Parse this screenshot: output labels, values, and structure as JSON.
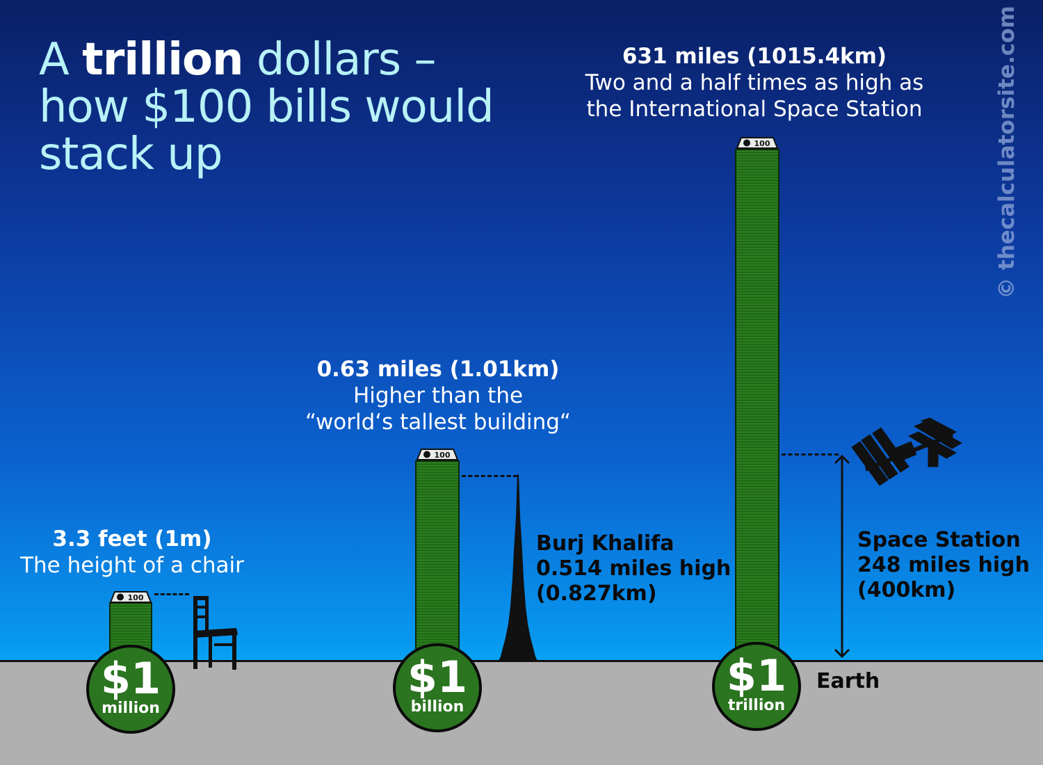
{
  "title": {
    "line1_pre": "A ",
    "line1_bold": "trillion",
    "line1_post": " dollars –",
    "line2": "how $100 bills would",
    "line3": "stack up"
  },
  "watermark": "© thecalculatorsite.com",
  "bill_label": "100",
  "stacks": [
    {
      "caption_head": "3.3 feet (1m)",
      "caption_body": "The height of a chair",
      "coin_amount": "$1",
      "coin_unit": "million"
    },
    {
      "caption_head": "0.63 miles (1.01km)",
      "caption_body1": "Higher than the",
      "caption_body2": "“world‘s tallest building“",
      "coin_amount": "$1",
      "coin_unit": "billion"
    },
    {
      "caption_head": "631 miles (1015.4km)",
      "caption_body1": "Two and a half times as high as",
      "caption_body2": "the International Space Station",
      "coin_amount": "$1",
      "coin_unit": "trillion"
    }
  ],
  "burj": {
    "line1": "Burj Khalifa",
    "line2": "0.514 miles high",
    "line3": "(0.827km)"
  },
  "station": {
    "line1": "Space Station",
    "line2": "248 miles high",
    "line3": "(400km)"
  },
  "earth_label": "Earth",
  "colors": {
    "stack_green": "#2a7a1e",
    "coin_green": "#2b7420",
    "title_cyan": "#b7f2f7",
    "ground": "#b0b0b0"
  },
  "icons": [
    "chair-icon",
    "burj-khalifa-icon",
    "space-station-icon",
    "dollar-bill-icon"
  ]
}
